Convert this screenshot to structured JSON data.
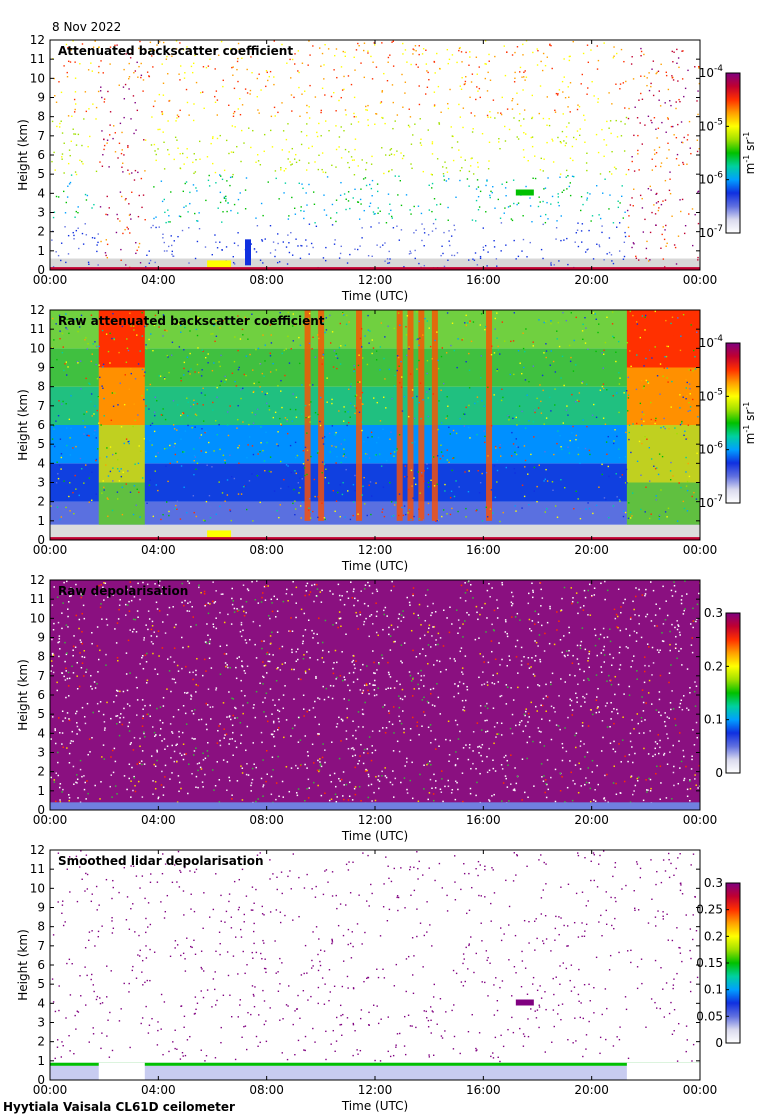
{
  "header": {
    "date": "8 Nov 2022"
  },
  "footer": {
    "instrument": "Hyytiala Vaisala CL61D ceilometer"
  },
  "colors": {
    "cmap": [
      "#ffffff",
      "#d9d9ee",
      "#6070e0",
      "#1030e0",
      "#00a0ff",
      "#00d0a0",
      "#00c000",
      "#a0e000",
      "#ffff00",
      "#ffa000",
      "#ff3000",
      "#c00030",
      "#800080"
    ]
  },
  "chart_data": [
    {
      "type": "heatmap",
      "title": "Attenuated backscatter coefficient",
      "xlabel": "Time (UTC)",
      "ylabel": "Height (km)",
      "xticks": [
        "00:00",
        "04:00",
        "08:00",
        "12:00",
        "16:00",
        "20:00",
        "00:00"
      ],
      "yticks": [
        "0",
        "1",
        "2",
        "3",
        "4",
        "5",
        "6",
        "7",
        "8",
        "9",
        "10",
        "11",
        "12"
      ],
      "xlim_hours": [
        0,
        24
      ],
      "ylim_km": [
        0,
        12
      ],
      "colorbar": {
        "scale": "log",
        "ticks": [
          "10-7",
          "10-6",
          "10-5",
          "10-4"
        ],
        "unit": "m-1 sr-1"
      },
      "features": {
        "noise_level": "sparse",
        "low_layer_top_km": 0.6,
        "cloud_at": [
          {
            "t": 17.5,
            "h": 4.0
          },
          {
            "t": 7.3,
            "h": 1.5
          }
        ]
      }
    },
    {
      "type": "heatmap",
      "title": "Raw attenuated backscatter coefficient",
      "xlabel": "Time (UTC)",
      "ylabel": "Height (km)",
      "xticks": [
        "00:00",
        "04:00",
        "08:00",
        "12:00",
        "16:00",
        "20:00",
        "00:00"
      ],
      "yticks": [
        "0",
        "1",
        "2",
        "3",
        "4",
        "5",
        "6",
        "7",
        "8",
        "9",
        "10",
        "11",
        "12"
      ],
      "xlim_hours": [
        0,
        24
      ],
      "ylim_km": [
        0,
        12
      ],
      "colorbar": {
        "scale": "log",
        "ticks": [
          "10-7",
          "10-6",
          "10-5",
          "10-4"
        ],
        "unit": "m-1 sr-1"
      },
      "features": {
        "noise_level": "dense",
        "high_noise_periods_hours": [
          [
            1.8,
            3.5
          ],
          [
            21.3,
            24
          ]
        ]
      }
    },
    {
      "type": "heatmap",
      "title": "Raw depolarisation",
      "xlabel": "Time (UTC)",
      "ylabel": "Height (km)",
      "xticks": [
        "00:00",
        "04:00",
        "08:00",
        "12:00",
        "16:00",
        "20:00",
        "00:00"
      ],
      "yticks": [
        "0",
        "1",
        "2",
        "3",
        "4",
        "5",
        "6",
        "7",
        "8",
        "9",
        "10",
        "11",
        "12"
      ],
      "xlim_hours": [
        0,
        24
      ],
      "ylim_km": [
        0,
        12
      ],
      "colorbar": {
        "scale": "linear",
        "ticks": [
          "0",
          "0.1",
          "0.2",
          "0.3"
        ]
      },
      "features": {
        "noise_level": "saturated"
      }
    },
    {
      "type": "heatmap",
      "title": "Smoothed lidar depolarisation",
      "xlabel": "Time (UTC)",
      "ylabel": "Height (km)",
      "xticks": [
        "00:00",
        "04:00",
        "08:00",
        "12:00",
        "16:00",
        "20:00",
        "00:00"
      ],
      "yticks": [
        "0",
        "1",
        "2",
        "3",
        "4",
        "5",
        "6",
        "7",
        "8",
        "9",
        "10",
        "11",
        "12"
      ],
      "xlim_hours": [
        0,
        24
      ],
      "ylim_km": [
        0,
        12
      ],
      "colorbar": {
        "scale": "linear",
        "ticks": [
          "0",
          "0.05",
          "0.1",
          "0.15",
          "0.2",
          "0.25",
          "0.3"
        ]
      },
      "features": {
        "noise_level": "sparse",
        "low_layer_top_km": 0.9
      }
    }
  ]
}
